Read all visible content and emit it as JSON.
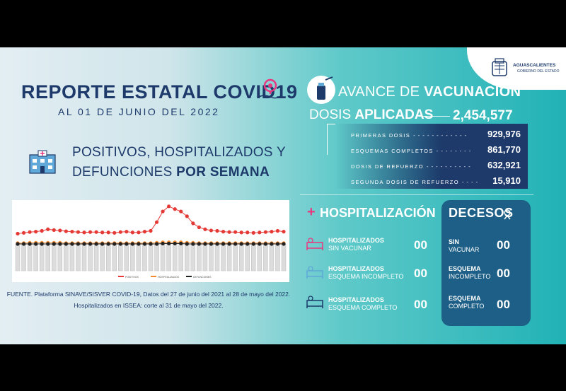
{
  "header": {
    "title": "REPORTE ESTATAL COVID19",
    "date": "AL 01 DE JUNIO DEL 2022"
  },
  "logo": {
    "name": "AGUASCALIENTES",
    "subtitle": "GOBIERNO DEL ESTADO"
  },
  "weekly_section": {
    "title_line1": "POSITIVOS, HOSPITALIZADOS Y",
    "title_line2_regular": "DEFUNCIONES ",
    "title_line2_bold": "POR SEMANA"
  },
  "chart_data": {
    "type": "line",
    "title": "",
    "series": [
      {
        "name": "POSITIVOS",
        "color": "#e53935",
        "values": [
          26,
          28,
          30,
          31,
          33,
          37,
          35,
          34,
          32,
          31,
          30,
          29,
          30,
          30,
          29,
          29,
          28,
          30,
          31,
          29,
          29,
          31,
          33,
          55,
          82,
          95,
          88,
          82,
          70,
          52,
          42,
          37,
          34,
          33,
          31,
          30,
          30,
          29,
          29,
          28,
          29,
          30,
          31,
          33,
          31
        ]
      },
      {
        "name": "HOSPITALIZADOS",
        "color": "#f28b30",
        "values": [
          2,
          2,
          3,
          3,
          3,
          3,
          3,
          3,
          2,
          2,
          2,
          2,
          2,
          2,
          2,
          2,
          2,
          2,
          2,
          2,
          2,
          2,
          2,
          3,
          4,
          4,
          4,
          4,
          3,
          3,
          2,
          2,
          2,
          2,
          2,
          2,
          2,
          2,
          2,
          2,
          2,
          2,
          2,
          2,
          2
        ]
      },
      {
        "name": "DEFUNCIONES",
        "color": "#222222",
        "values": [
          0,
          0,
          0,
          0,
          0,
          0,
          0,
          0,
          0,
          0,
          0,
          0,
          0,
          0,
          0,
          0,
          0,
          0,
          0,
          0,
          0,
          0,
          0,
          0,
          1,
          1,
          1,
          1,
          0,
          0,
          0,
          0,
          0,
          0,
          0,
          0,
          0,
          0,
          0,
          0,
          0,
          0,
          0,
          0,
          0
        ]
      }
    ],
    "legend_position": "bottom",
    "grid": false
  },
  "source": {
    "line1": "FUENTE. Plataforma SINAVE/SISVER COVID-19, Datos del 27 de junio del 2021 al 28 de mayo del 2022.",
    "line2": "Hospitalizados en ISSEA: corte al 31 de mayo del 2022."
  },
  "vacunacion": {
    "title_regular": "AVANCE DE ",
    "title_bold": "VACUNACIÓN",
    "dosis_regular": "DOSIS ",
    "dosis_bold": "APLICADAS",
    "total": "2,454,577",
    "rows": [
      {
        "label": "PRIMERAS DOSIS",
        "value": "929,976"
      },
      {
        "label": "ESQUEMAS COMPLETOS",
        "value": "861,770"
      },
      {
        "label": "DOSIS DE REFUERZO",
        "value": "632,921"
      },
      {
        "label": "SEGUNDA DOSIS DE REFUERZO",
        "value": "15,910"
      }
    ]
  },
  "hospitalizacion": {
    "title": "HOSPITALIZACIÓN",
    "plus": "+",
    "rows": [
      {
        "label_bold": "HOSPITALIZADOS",
        "label": "SIN VACUNAR",
        "value": "00"
      },
      {
        "label_bold": "HOSPITALIZADOS",
        "label": "ESQUEMA INCOMPLETO",
        "value": "00"
      },
      {
        "label_bold": "HOSPITALIZADOS",
        "label": "ESQUEMA COMPLETO",
        "value": "00"
      }
    ]
  },
  "decesos": {
    "title": "DECESOS",
    "rows": [
      {
        "label_bold": "SIN",
        "label": "VACUNAR",
        "value": "00"
      },
      {
        "label_bold": "ESQUEMA",
        "label": "INCOMPLETO",
        "value": "00"
      },
      {
        "label_bold": "ESQUEMA",
        "label": "COMPLETO",
        "value": "00"
      }
    ]
  },
  "colors": {
    "navy": "#1d3a6b",
    "teal": "#21b2b6",
    "pink": "#e8387f"
  }
}
